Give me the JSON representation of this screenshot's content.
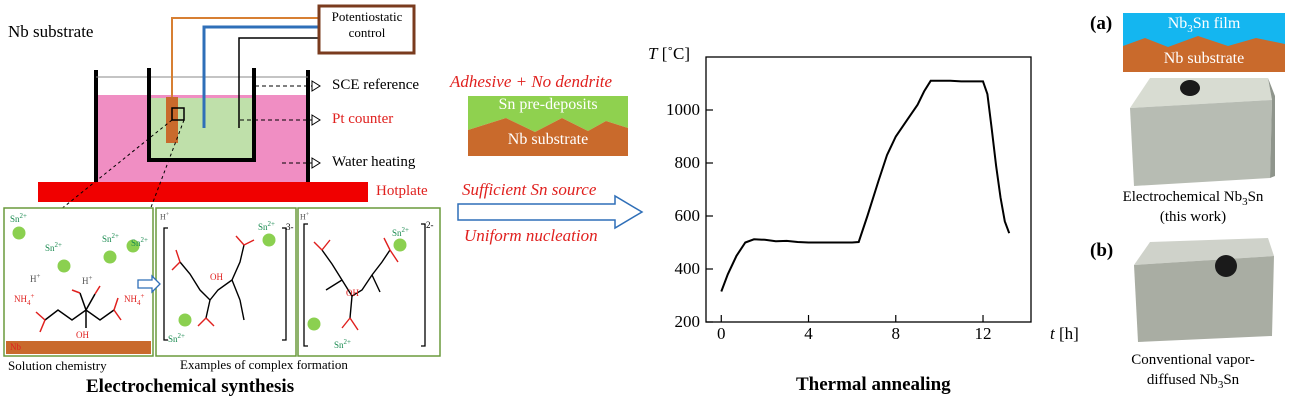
{
  "synthesis": {
    "nb_substrate_label": "Nb substrate",
    "potentiostatic_control": "Potentiostatic control",
    "sce_reference": "SCE reference",
    "pt_counter": "Pt counter",
    "water_heating": "Water heating",
    "hotplate": "Hotplate",
    "solution_chemistry_caption": "Solution chemistry",
    "complex_formation_caption": "Examples of complex formation",
    "section_title": "Electrochemical synthesis",
    "nb_floor_label": "Nb",
    "ion_labels": {
      "sn": "Sn",
      "sn_charge": "2+",
      "nh4": "NH",
      "nh4_sub": "4",
      "nh4_charge": "+",
      "h": "H",
      "h_charge": "+",
      "oh": "OH"
    },
    "complex_charges": [
      "3-",
      "2-"
    ]
  },
  "middle": {
    "adhesive": "Adhesive + No dendrite",
    "sn_predeposits": "Sn pre-deposits",
    "nb_substrate": "Nb substrate",
    "sufficient_sn": "Sufficient Sn source",
    "uniform_nucleation": "Uniform nucleation"
  },
  "annealing": {
    "section_title": "Thermal annealing",
    "y_unit_symbol": "T",
    "y_unit": "[˚C]",
    "x_unit_symbol": "t",
    "x_unit": "[h]"
  },
  "chart_data": {
    "type": "line",
    "title": "",
    "xlabel": "t [h]",
    "ylabel": "T [˚C]",
    "xlim": [
      -0.7,
      14.2
    ],
    "ylim": [
      200,
      1200
    ],
    "xticks": [
      0,
      4,
      8,
      12
    ],
    "yticks": [
      200,
      400,
      600,
      800,
      1000
    ],
    "series": [
      {
        "x": [
          0,
          0.3,
          0.7,
          1.1,
          1.5,
          2.0,
          2.5,
          3.0,
          3.5,
          4.0,
          5.0,
          6.0,
          6.3,
          6.7,
          7.2,
          7.6,
          8.0,
          8.5,
          9.0,
          9.3,
          9.6,
          10.0,
          10.5,
          11.0,
          11.5,
          12.0,
          12.2,
          12.4,
          12.6,
          12.8,
          13.0,
          13.2
        ],
        "y": [
          315,
          380,
          450,
          500,
          512,
          510,
          505,
          506,
          502,
          500,
          500,
          500,
          502,
          600,
          730,
          830,
          900,
          960,
          1020,
          1070,
          1110,
          1110,
          1110,
          1108,
          1108,
          1108,
          1060,
          930,
          790,
          670,
          580,
          535
        ]
      }
    ]
  },
  "samples": {
    "a_label": "(a)",
    "b_label": "(b)",
    "film_prefix": "Nb",
    "film_sub": "3",
    "film_suffix": "Sn film",
    "nb_substrate": "Nb substrate",
    "a_caption_line1_prefix": "Electrochemical Nb",
    "a_caption_sub": "3",
    "a_caption_line1_suffix": "Sn",
    "a_caption_line2": "(this work)",
    "b_caption_line1": "Conventional vapor-",
    "b_caption_line2_prefix": "diffused Nb",
    "b_caption_sub": "3",
    "b_caption_line2_suffix": "Sn"
  }
}
